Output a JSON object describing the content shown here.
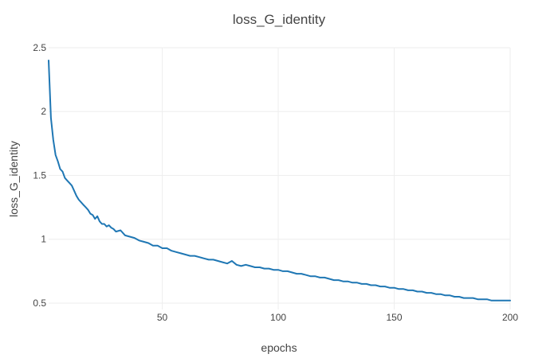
{
  "chart_data": {
    "type": "line",
    "title": "loss_G_identity",
    "xlabel": "epochs",
    "ylabel": "loss_G_identity",
    "xlim": [
      1,
      200
    ],
    "ylim": [
      0.45,
      2.5
    ],
    "xticks": [
      50,
      100,
      150,
      200
    ],
    "yticks": [
      0.5,
      1,
      1.5,
      2,
      2.5
    ],
    "xtick_labels": [
      "50",
      "100",
      "150",
      "200"
    ],
    "ytick_labels": [
      "0.5",
      "1",
      "1.5",
      "2",
      "2.5"
    ],
    "grid": true,
    "legend": "none",
    "series": [
      {
        "color": "#1f77b4",
        "x": [
          1,
          2,
          3,
          4,
          5,
          6,
          7,
          8,
          9,
          10,
          11,
          12,
          13,
          14,
          15,
          16,
          17,
          18,
          19,
          20,
          21,
          22,
          23,
          24,
          25,
          26,
          27,
          28,
          29,
          30,
          32,
          34,
          36,
          38,
          40,
          42,
          44,
          46,
          48,
          50,
          52,
          54,
          56,
          58,
          60,
          62,
          64,
          66,
          68,
          70,
          72,
          74,
          76,
          78,
          80,
          82,
          84,
          86,
          88,
          90,
          92,
          94,
          96,
          98,
          100,
          102,
          104,
          106,
          108,
          110,
          112,
          114,
          116,
          118,
          120,
          122,
          124,
          126,
          128,
          130,
          132,
          134,
          136,
          138,
          140,
          142,
          144,
          146,
          148,
          150,
          152,
          154,
          156,
          158,
          160,
          162,
          164,
          166,
          168,
          170,
          172,
          174,
          176,
          178,
          180,
          182,
          184,
          186,
          188,
          190,
          192,
          194,
          196,
          198,
          200
        ],
        "y": [
          2.4,
          1.95,
          1.78,
          1.66,
          1.61,
          1.55,
          1.53,
          1.48,
          1.46,
          1.44,
          1.42,
          1.38,
          1.34,
          1.31,
          1.29,
          1.27,
          1.25,
          1.23,
          1.2,
          1.19,
          1.16,
          1.18,
          1.14,
          1.12,
          1.12,
          1.1,
          1.11,
          1.09,
          1.08,
          1.06,
          1.07,
          1.03,
          1.02,
          1.01,
          0.99,
          0.98,
          0.97,
          0.95,
          0.95,
          0.93,
          0.93,
          0.91,
          0.9,
          0.89,
          0.88,
          0.87,
          0.87,
          0.86,
          0.85,
          0.84,
          0.84,
          0.83,
          0.82,
          0.81,
          0.83,
          0.8,
          0.79,
          0.8,
          0.79,
          0.78,
          0.78,
          0.77,
          0.77,
          0.76,
          0.76,
          0.75,
          0.75,
          0.74,
          0.73,
          0.73,
          0.72,
          0.71,
          0.71,
          0.7,
          0.7,
          0.69,
          0.68,
          0.68,
          0.67,
          0.67,
          0.66,
          0.66,
          0.65,
          0.65,
          0.64,
          0.64,
          0.63,
          0.63,
          0.62,
          0.62,
          0.61,
          0.61,
          0.6,
          0.6,
          0.59,
          0.59,
          0.58,
          0.58,
          0.57,
          0.57,
          0.56,
          0.56,
          0.55,
          0.55,
          0.54,
          0.54,
          0.54,
          0.53,
          0.53,
          0.53,
          0.52,
          0.52,
          0.52,
          0.52,
          0.52
        ]
      }
    ]
  }
}
